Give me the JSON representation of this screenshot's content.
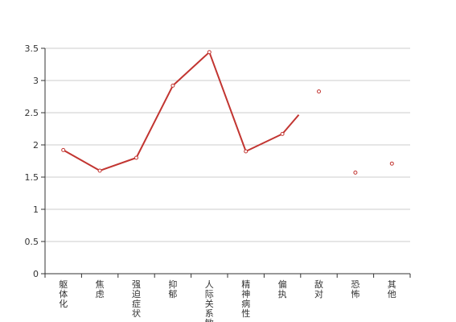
{
  "chart_data": {
    "type": "line",
    "title": "",
    "xlabel": "",
    "ylabel": "",
    "categories": [
      "躯体化",
      "焦虑",
      "强迫症状",
      "抑郁",
      "人际关系敏感",
      "精神病性",
      "偏执",
      "敌对",
      "恐怖",
      "其他"
    ],
    "series": [
      {
        "name": "",
        "color": "#c23531",
        "values": [
          1.92,
          1.6,
          1.8,
          2.92,
          3.44,
          1.9,
          2.17,
          2.83,
          1.57,
          1.71
        ],
        "connected_segments": [
          [
            0,
            6
          ]
        ],
        "partial_segment": {
          "from": 6,
          "to": 7,
          "fraction": 0.45
        }
      }
    ],
    "ylim": [
      0,
      3.5
    ],
    "yticks": [
      0,
      0.5,
      1,
      1.5,
      2,
      2.5,
      3,
      3.5
    ],
    "grid": true
  }
}
